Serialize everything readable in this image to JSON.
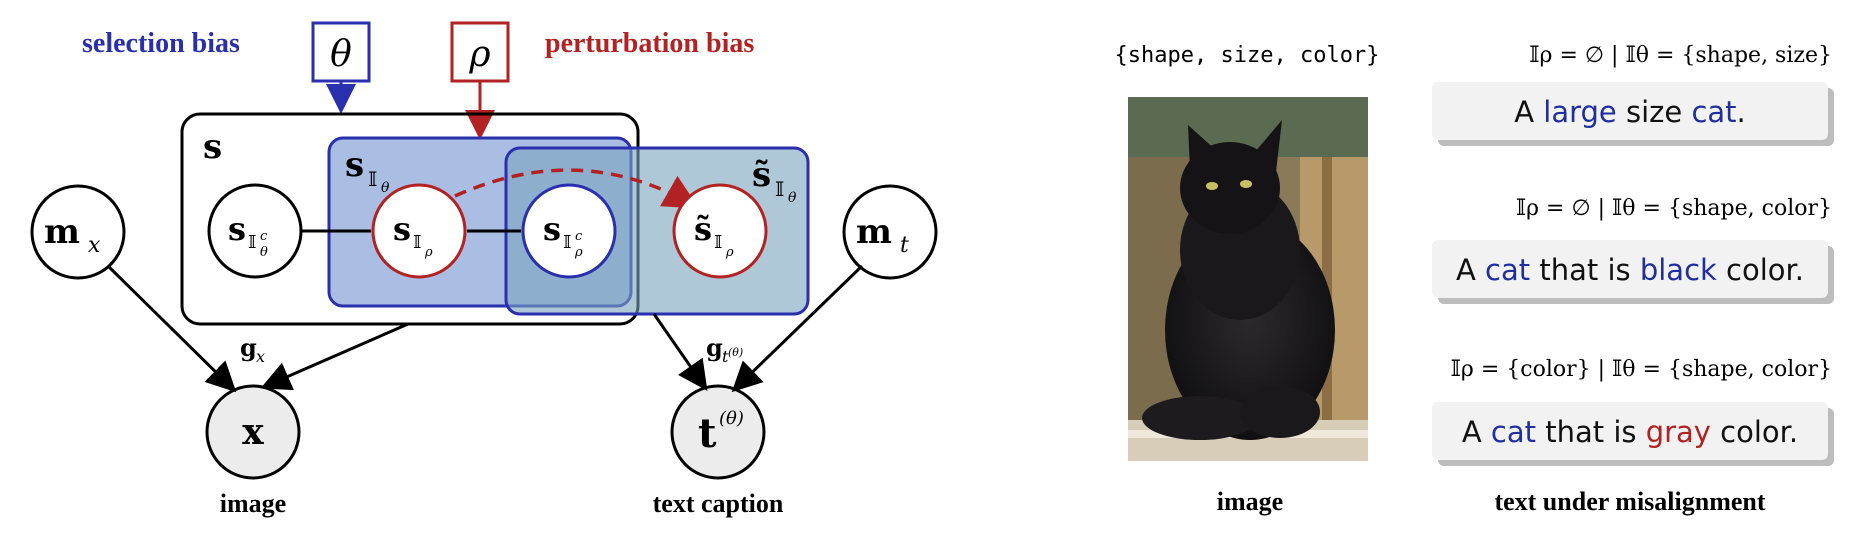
{
  "labels": {
    "selection_bias": "selection bias",
    "perturbation_bias": "perturbation bias",
    "image": "image",
    "text_caption": "text caption",
    "image_right": "image",
    "text_under_misalignment": "text under misalignment"
  },
  "symbols": {
    "theta": "θ",
    "rho": "ρ",
    "s": "s",
    "s_I_theta": "s",
    "s_tilde_I_theta": "s̃",
    "m": "m",
    "x_sub": "x",
    "t_sub": "t",
    "g": "g",
    "x_node": "x",
    "t_node": "t",
    "t_sup": "(θ)",
    "sub_I_theta_c": "𝕀",
    "sub_I_rho": "𝕀"
  },
  "right_panel": {
    "attributes": "{shape, size, color}",
    "captions": [
      {
        "condition": "𝕀ρ = ∅ | 𝕀θ = {shape, size}",
        "parts": [
          {
            "text": "A ",
            "color": "#111111"
          },
          {
            "text": "large",
            "color": "#1f2fa0"
          },
          {
            "text": " size ",
            "color": "#111111"
          },
          {
            "text": "cat",
            "color": "#1f2fa0"
          },
          {
            "text": ".",
            "color": "#111111"
          }
        ]
      },
      {
        "condition": "𝕀ρ = ∅ | 𝕀θ = {shape, color}",
        "parts": [
          {
            "text": "A ",
            "color": "#111111"
          },
          {
            "text": "cat",
            "color": "#1f2fa0"
          },
          {
            "text": " that is ",
            "color": "#111111"
          },
          {
            "text": "black",
            "color": "#1f2fa0"
          },
          {
            "text": " color.",
            "color": "#111111"
          }
        ]
      },
      {
        "condition": "𝕀ρ = {color} | 𝕀θ = {shape, color}",
        "parts": [
          {
            "text": "A ",
            "color": "#111111"
          },
          {
            "text": "cat",
            "color": "#1f2fa0"
          },
          {
            "text": " that is ",
            "color": "#111111"
          },
          {
            "text": "gray",
            "color": "#b22222"
          },
          {
            "text": " color.",
            "color": "#111111"
          }
        ]
      }
    ]
  },
  "colors": {
    "blue": "#2a2fae",
    "red": "#b22222",
    "blue_fill": "#7d9bd4",
    "teal_fill": "#7aa3bd"
  }
}
